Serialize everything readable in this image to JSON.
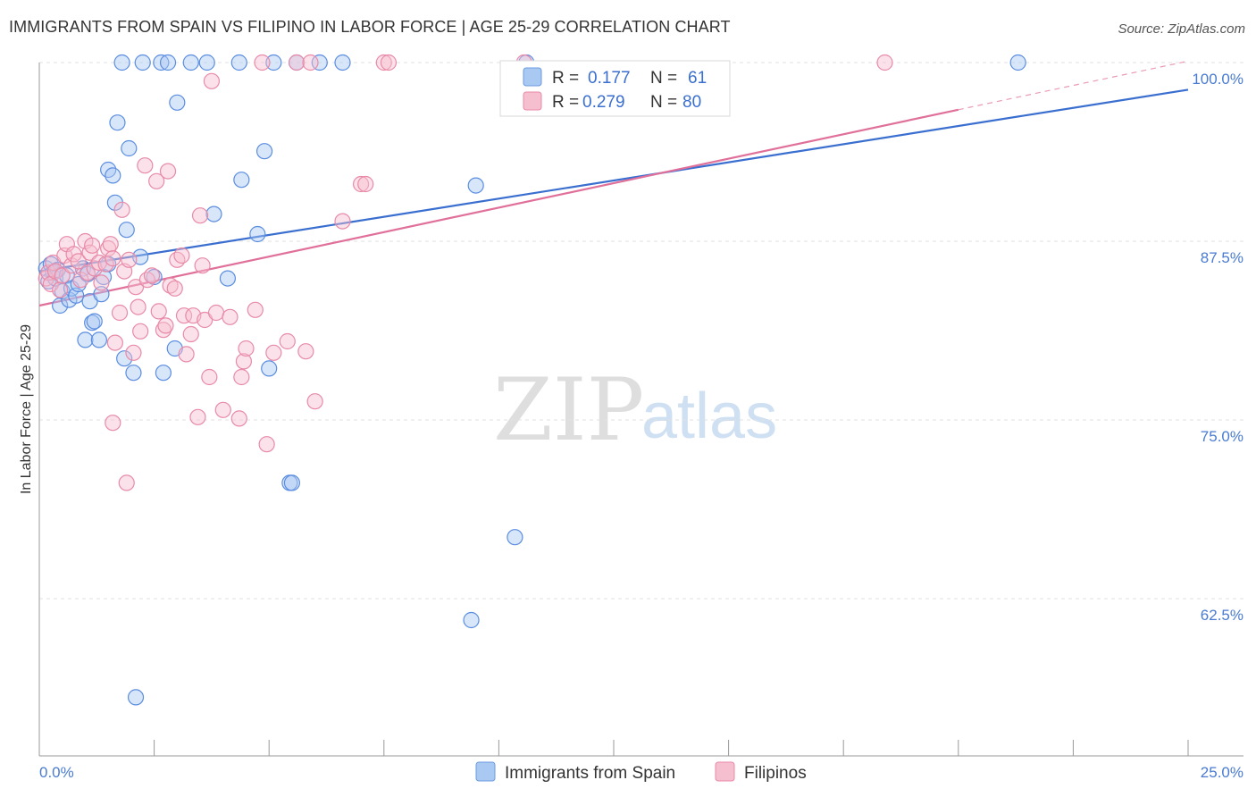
{
  "title": "IMMIGRANTS FROM SPAIN VS FILIPINO IN LABOR FORCE | AGE 25-29 CORRELATION CHART",
  "source": "Source: ZipAtlas.com",
  "watermark": {
    "zip": "ZIP",
    "atlas": "atlas"
  },
  "colors": {
    "blue": "#3a6fd0",
    "pink": "#e0709a",
    "blue_fill": "#a9c8f2",
    "pink_fill": "#f6bfd0"
  },
  "legend": {
    "r_label": "R =",
    "n_label": "N =",
    "rows": [
      {
        "r": "0.177",
        "n": "61"
      },
      {
        "r": "0.279",
        "n": "80"
      }
    ]
  },
  "bottom_legend": [
    {
      "label": "Immigrants from Spain"
    },
    {
      "label": "Filipinos"
    }
  ],
  "chart_data": {
    "type": "scatter",
    "title": "IMMIGRANTS FROM SPAIN VS FILIPINO IN LABOR FORCE | AGE 25-29 CORRELATION CHART",
    "xlabel": "",
    "ylabel": "In Labor Force | Age 25-29",
    "xlim": [
      0,
      25
    ],
    "ylim": [
      51.5,
      101.5
    ],
    "x_tick_labels": [
      "0.0%",
      "25.0%"
    ],
    "y_ticks": [
      62.5,
      75.0,
      87.5,
      100.0
    ],
    "y_tick_labels": [
      "62.5%",
      "75.0%",
      "87.5%",
      "100.0%"
    ],
    "series": [
      {
        "name": "Immigrants from Spain",
        "r": 0.177,
        "n": 61,
        "trend": {
          "x0": 0.0,
          "y0": 85.4,
          "x1": 25.0,
          "y1": 98.1
        },
        "points": [
          [
            0.15,
            85.6
          ],
          [
            0.2,
            84.7
          ],
          [
            0.25,
            85.9
          ],
          [
            0.3,
            85.3
          ],
          [
            0.35,
            84.9
          ],
          [
            0.4,
            85.5
          ],
          [
            0.45,
            83.0
          ],
          [
            0.5,
            84.0
          ],
          [
            0.6,
            85.1
          ],
          [
            0.65,
            83.4
          ],
          [
            0.7,
            84.2
          ],
          [
            0.8,
            83.7
          ],
          [
            0.85,
            84.5
          ],
          [
            0.95,
            85.6
          ],
          [
            1.0,
            80.6
          ],
          [
            1.05,
            85.2
          ],
          [
            1.1,
            83.3
          ],
          [
            1.15,
            81.8
          ],
          [
            1.2,
            81.9
          ],
          [
            1.3,
            80.6
          ],
          [
            1.35,
            83.8
          ],
          [
            1.4,
            85.0
          ],
          [
            1.5,
            85.9
          ],
          [
            1.5,
            92.5
          ],
          [
            1.6,
            92.1
          ],
          [
            1.65,
            90.2
          ],
          [
            1.7,
            95.8
          ],
          [
            1.85,
            79.3
          ],
          [
            1.9,
            88.3
          ],
          [
            1.95,
            94.0
          ],
          [
            2.05,
            78.3
          ],
          [
            2.1,
            55.6
          ],
          [
            2.2,
            86.4
          ],
          [
            2.5,
            85.0
          ],
          [
            2.7,
            78.3
          ],
          [
            2.95,
            80.0
          ],
          [
            3.0,
            97.2
          ],
          [
            3.8,
            89.4
          ],
          [
            4.1,
            84.9
          ],
          [
            4.4,
            91.8
          ],
          [
            4.75,
            88.0
          ],
          [
            4.9,
            93.8
          ],
          [
            5.0,
            78.6
          ],
          [
            5.45,
            70.6
          ],
          [
            5.5,
            70.6
          ],
          [
            9.4,
            61.0
          ],
          [
            9.5,
            91.4
          ],
          [
            10.35,
            66.8
          ],
          [
            1.8,
            100.0
          ],
          [
            2.25,
            100.0
          ],
          [
            2.65,
            100.0
          ],
          [
            2.8,
            100.0
          ],
          [
            3.3,
            100.0
          ],
          [
            3.65,
            100.0
          ],
          [
            4.35,
            100.0
          ],
          [
            5.1,
            100.0
          ],
          [
            5.6,
            100.0
          ],
          [
            6.1,
            100.0
          ],
          [
            6.6,
            100.0
          ],
          [
            10.6,
            100.0
          ],
          [
            21.3,
            100.0
          ]
        ]
      },
      {
        "name": "Filipinos",
        "r": 0.279,
        "n": 80,
        "trend": {
          "x0": 0.0,
          "y0": 83.0,
          "x1": 20.0,
          "y1": 96.7,
          "dash_x1": 25.0,
          "dash_y1": 100.1
        },
        "points": [
          [
            0.15,
            84.9
          ],
          [
            0.2,
            85.3
          ],
          [
            0.25,
            84.5
          ],
          [
            0.3,
            86.0
          ],
          [
            0.35,
            85.4
          ],
          [
            0.45,
            84.1
          ],
          [
            0.5,
            85.1
          ],
          [
            0.55,
            86.5
          ],
          [
            0.6,
            87.3
          ],
          [
            0.7,
            85.8
          ],
          [
            0.75,
            86.6
          ],
          [
            0.85,
            86.1
          ],
          [
            0.9,
            84.8
          ],
          [
            1.0,
            87.5
          ],
          [
            1.05,
            85.3
          ],
          [
            1.1,
            86.7
          ],
          [
            1.15,
            87.2
          ],
          [
            1.2,
            85.6
          ],
          [
            1.3,
            86.0
          ],
          [
            1.35,
            84.6
          ],
          [
            1.45,
            85.9
          ],
          [
            1.5,
            87.0
          ],
          [
            1.55,
            87.3
          ],
          [
            1.6,
            86.3
          ],
          [
            1.65,
            80.4
          ],
          [
            1.6,
            74.8
          ],
          [
            1.75,
            82.5
          ],
          [
            1.8,
            89.7
          ],
          [
            1.85,
            85.4
          ],
          [
            1.9,
            70.6
          ],
          [
            1.95,
            86.2
          ],
          [
            2.05,
            79.7
          ],
          [
            2.1,
            84.3
          ],
          [
            2.15,
            82.9
          ],
          [
            2.2,
            81.2
          ],
          [
            2.3,
            92.8
          ],
          [
            2.35,
            84.8
          ],
          [
            2.45,
            85.1
          ],
          [
            2.55,
            91.7
          ],
          [
            2.6,
            82.6
          ],
          [
            2.7,
            81.3
          ],
          [
            2.75,
            81.6
          ],
          [
            2.8,
            92.4
          ],
          [
            2.85,
            84.4
          ],
          [
            2.95,
            84.2
          ],
          [
            3.0,
            86.2
          ],
          [
            3.1,
            86.5
          ],
          [
            3.15,
            82.3
          ],
          [
            3.2,
            79.6
          ],
          [
            3.3,
            81.0
          ],
          [
            3.35,
            82.3
          ],
          [
            3.45,
            75.2
          ],
          [
            3.5,
            89.3
          ],
          [
            3.55,
            85.8
          ],
          [
            3.6,
            82.0
          ],
          [
            3.7,
            78.0
          ],
          [
            3.75,
            98.7
          ],
          [
            3.85,
            82.5
          ],
          [
            4.0,
            75.7
          ],
          [
            4.15,
            82.2
          ],
          [
            4.35,
            75.1
          ],
          [
            4.4,
            78.0
          ],
          [
            4.45,
            79.1
          ],
          [
            4.5,
            80.0
          ],
          [
            4.7,
            82.7
          ],
          [
            4.95,
            73.3
          ],
          [
            5.1,
            79.7
          ],
          [
            5.4,
            80.5
          ],
          [
            5.8,
            79.8
          ],
          [
            6.0,
            76.3
          ],
          [
            6.6,
            88.9
          ],
          [
            7.0,
            91.5
          ],
          [
            7.1,
            91.5
          ],
          [
            7.5,
            100.0
          ],
          [
            7.6,
            100.0
          ],
          [
            5.6,
            100.0
          ],
          [
            4.85,
            100.0
          ],
          [
            5.9,
            100.0
          ],
          [
            18.4,
            100.0
          ],
          [
            10.55,
            100.0
          ]
        ]
      }
    ]
  }
}
